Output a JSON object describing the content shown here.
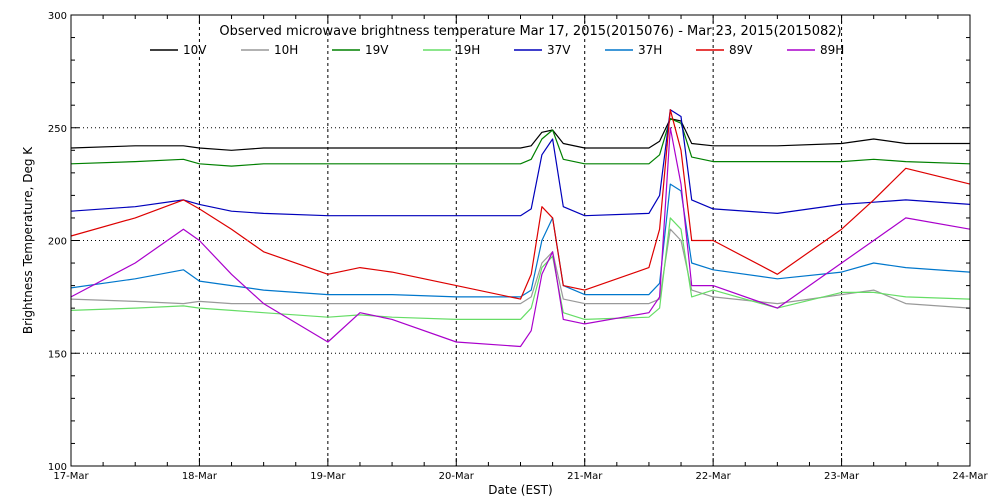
{
  "chart_data": {
    "type": "line",
    "title": "Observed microwave brightness temperature Mar 17, 2015(2015076) - Mar 23, 2015(2015082)",
    "xlabel": "Date (EST)",
    "ylabel": "Brightness Temperature, Deg K",
    "xlim": [
      "2015-03-17 00:00",
      "2015-03-24 00:00"
    ],
    "ylim": [
      100,
      300
    ],
    "x_ticks": [
      "17-Mar",
      "18-Mar",
      "19-Mar",
      "20-Mar",
      "21-Mar",
      "22-Mar",
      "23-Mar",
      "24-Mar"
    ],
    "y_ticks": [
      "100",
      "150",
      "200",
      "250",
      "300"
    ],
    "grid": true,
    "legend_position": "top",
    "series": [
      {
        "name": "10V",
        "color": "#000000",
        "x": [
          "2015-03-17 00:00",
          "2015-03-17 12:00",
          "2015-03-17 21:00",
          "2015-03-18 00:00",
          "2015-03-18 06:00",
          "2015-03-18 12:00",
          "2015-03-19 00:00",
          "2015-03-19 12:00",
          "2015-03-20 00:00",
          "2015-03-20 12:00",
          "2015-03-20 14:00",
          "2015-03-20 16:00",
          "2015-03-20 18:00",
          "2015-03-20 20:00",
          "2015-03-21 00:00",
          "2015-03-21 12:00",
          "2015-03-21 14:00",
          "2015-03-21 16:00",
          "2015-03-21 18:00",
          "2015-03-21 20:00",
          "2015-03-22 00:00",
          "2015-03-22 12:00",
          "2015-03-23 00:00",
          "2015-03-23 06:00",
          "2015-03-23 12:00",
          "2015-03-24 00:00"
        ],
        "y": [
          241,
          242,
          242,
          241,
          240,
          241,
          241,
          241,
          241,
          241,
          242,
          248,
          249,
          243,
          241,
          241,
          244,
          254,
          253,
          243,
          242,
          242,
          243,
          245,
          243,
          243
        ]
      },
      {
        "name": "10H",
        "color": "#999999",
        "x": [
          "2015-03-17 00:00",
          "2015-03-17 12:00",
          "2015-03-17 21:00",
          "2015-03-18 00:00",
          "2015-03-18 06:00",
          "2015-03-18 12:00",
          "2015-03-19 00:00",
          "2015-03-19 12:00",
          "2015-03-20 00:00",
          "2015-03-20 12:00",
          "2015-03-20 14:00",
          "2015-03-20 16:00",
          "2015-03-20 18:00",
          "2015-03-20 20:00",
          "2015-03-21 00:00",
          "2015-03-21 12:00",
          "2015-03-21 14:00",
          "2015-03-21 16:00",
          "2015-03-21 18:00",
          "2015-03-21 20:00",
          "2015-03-22 00:00",
          "2015-03-22 12:00",
          "2015-03-23 00:00",
          "2015-03-23 06:00",
          "2015-03-23 12:00",
          "2015-03-24 00:00"
        ],
        "y": [
          174,
          173,
          172,
          173,
          172,
          172,
          172,
          172,
          172,
          172,
          175,
          190,
          195,
          174,
          172,
          172,
          174,
          205,
          200,
          178,
          175,
          172,
          176,
          178,
          172,
          170
        ]
      },
      {
        "name": "19V",
        "color": "#008000",
        "x": [
          "2015-03-17 00:00",
          "2015-03-17 12:00",
          "2015-03-17 21:00",
          "2015-03-18 00:00",
          "2015-03-18 06:00",
          "2015-03-18 12:00",
          "2015-03-19 00:00",
          "2015-03-19 12:00",
          "2015-03-20 00:00",
          "2015-03-20 12:00",
          "2015-03-20 14:00",
          "2015-03-20 16:00",
          "2015-03-20 18:00",
          "2015-03-20 20:00",
          "2015-03-21 00:00",
          "2015-03-21 12:00",
          "2015-03-21 14:00",
          "2015-03-21 16:00",
          "2015-03-21 18:00",
          "2015-03-21 20:00",
          "2015-03-22 00:00",
          "2015-03-22 12:00",
          "2015-03-23 00:00",
          "2015-03-23 06:00",
          "2015-03-23 12:00",
          "2015-03-24 00:00"
        ],
        "y": [
          234,
          235,
          236,
          234,
          233,
          234,
          234,
          234,
          234,
          234,
          236,
          245,
          249,
          236,
          234,
          234,
          238,
          254,
          252,
          237,
          235,
          235,
          235,
          236,
          235,
          234
        ]
      },
      {
        "name": "19H",
        "color": "#66dd66",
        "x": [
          "2015-03-17 00:00",
          "2015-03-17 12:00",
          "2015-03-17 21:00",
          "2015-03-18 00:00",
          "2015-03-18 06:00",
          "2015-03-18 12:00",
          "2015-03-19 00:00",
          "2015-03-19 06:00",
          "2015-03-19 12:00",
          "2015-03-20 00:00",
          "2015-03-20 12:00",
          "2015-03-20 14:00",
          "2015-03-20 16:00",
          "2015-03-20 18:00",
          "2015-03-20 20:00",
          "2015-03-21 00:00",
          "2015-03-21 12:00",
          "2015-03-21 14:00",
          "2015-03-21 16:00",
          "2015-03-21 18:00",
          "2015-03-21 20:00",
          "2015-03-22 00:00",
          "2015-03-22 12:00",
          "2015-03-23 00:00",
          "2015-03-23 06:00",
          "2015-03-23 12:00",
          "2015-03-24 00:00"
        ],
        "y": [
          169,
          170,
          171,
          170,
          169,
          168,
          166,
          167,
          166,
          165,
          165,
          170,
          188,
          193,
          168,
          165,
          166,
          170,
          210,
          205,
          175,
          178,
          170,
          177,
          177,
          175,
          174
        ]
      },
      {
        "name": "37V",
        "color": "#0000bb",
        "x": [
          "2015-03-17 00:00",
          "2015-03-17 12:00",
          "2015-03-17 21:00",
          "2015-03-18 00:00",
          "2015-03-18 06:00",
          "2015-03-18 12:00",
          "2015-03-19 00:00",
          "2015-03-19 12:00",
          "2015-03-20 00:00",
          "2015-03-20 12:00",
          "2015-03-20 14:00",
          "2015-03-20 16:00",
          "2015-03-20 18:00",
          "2015-03-20 20:00",
          "2015-03-21 00:00",
          "2015-03-21 12:00",
          "2015-03-21 14:00",
          "2015-03-21 16:00",
          "2015-03-21 18:00",
          "2015-03-21 20:00",
          "2015-03-22 00:00",
          "2015-03-22 12:00",
          "2015-03-23 00:00",
          "2015-03-23 06:00",
          "2015-03-23 12:00",
          "2015-03-24 00:00"
        ],
        "y": [
          213,
          215,
          218,
          216,
          213,
          212,
          211,
          211,
          211,
          211,
          214,
          238,
          245,
          215,
          211,
          212,
          220,
          258,
          255,
          218,
          214,
          212,
          216,
          217,
          218,
          216
        ]
      },
      {
        "name": "37H",
        "color": "#0077cc",
        "x": [
          "2015-03-17 00:00",
          "2015-03-17 12:00",
          "2015-03-17 21:00",
          "2015-03-18 00:00",
          "2015-03-18 06:00",
          "2015-03-18 12:00",
          "2015-03-19 00:00",
          "2015-03-19 12:00",
          "2015-03-20 00:00",
          "2015-03-20 12:00",
          "2015-03-20 14:00",
          "2015-03-20 16:00",
          "2015-03-20 18:00",
          "2015-03-20 20:00",
          "2015-03-21 00:00",
          "2015-03-21 12:00",
          "2015-03-21 14:00",
          "2015-03-21 16:00",
          "2015-03-21 18:00",
          "2015-03-21 20:00",
          "2015-03-22 00:00",
          "2015-03-22 12:00",
          "2015-03-23 00:00",
          "2015-03-23 06:00",
          "2015-03-23 12:00",
          "2015-03-24 00:00"
        ],
        "y": [
          179,
          183,
          187,
          182,
          180,
          178,
          176,
          176,
          175,
          175,
          178,
          200,
          210,
          180,
          176,
          176,
          181,
          225,
          222,
          190,
          187,
          183,
          186,
          190,
          188,
          186
        ]
      },
      {
        "name": "89V",
        "color": "#dd0000",
        "x": [
          "2015-03-17 00:00",
          "2015-03-17 12:00",
          "2015-03-17 21:00",
          "2015-03-18 00:00",
          "2015-03-18 06:00",
          "2015-03-18 12:00",
          "2015-03-19 00:00",
          "2015-03-19 06:00",
          "2015-03-19 12:00",
          "2015-03-20 00:00",
          "2015-03-20 12:00",
          "2015-03-20 14:00",
          "2015-03-20 16:00",
          "2015-03-20 18:00",
          "2015-03-20 20:00",
          "2015-03-21 00:00",
          "2015-03-21 12:00",
          "2015-03-21 14:00",
          "2015-03-21 16:00",
          "2015-03-21 18:00",
          "2015-03-21 20:00",
          "2015-03-22 00:00",
          "2015-03-22 12:00",
          "2015-03-23 00:00",
          "2015-03-23 06:00",
          "2015-03-23 12:00",
          "2015-03-24 00:00"
        ],
        "y": [
          202,
          210,
          218,
          214,
          205,
          195,
          185,
          188,
          186,
          180,
          174,
          185,
          215,
          210,
          180,
          178,
          188,
          205,
          258,
          240,
          200,
          200,
          185,
          205,
          218,
          232,
          225
        ]
      },
      {
        "name": "89H",
        "color": "#aa00cc",
        "x": [
          "2015-03-17 00:00",
          "2015-03-17 12:00",
          "2015-03-17 21:00",
          "2015-03-18 00:00",
          "2015-03-18 06:00",
          "2015-03-18 12:00",
          "2015-03-19 00:00",
          "2015-03-19 06:00",
          "2015-03-19 12:00",
          "2015-03-20 00:00",
          "2015-03-20 12:00",
          "2015-03-20 14:00",
          "2015-03-20 16:00",
          "2015-03-20 18:00",
          "2015-03-20 20:00",
          "2015-03-21 00:00",
          "2015-03-21 12:00",
          "2015-03-21 14:00",
          "2015-03-21 16:00",
          "2015-03-21 18:00",
          "2015-03-21 20:00",
          "2015-03-22 00:00",
          "2015-03-22 12:00",
          "2015-03-23 00:00",
          "2015-03-23 06:00",
          "2015-03-23 12:00",
          "2015-03-24 00:00"
        ],
        "y": [
          175,
          190,
          205,
          200,
          185,
          172,
          155,
          168,
          165,
          155,
          153,
          160,
          185,
          195,
          165,
          163,
          168,
          175,
          250,
          225,
          180,
          180,
          170,
          190,
          200,
          210,
          205
        ]
      }
    ]
  }
}
